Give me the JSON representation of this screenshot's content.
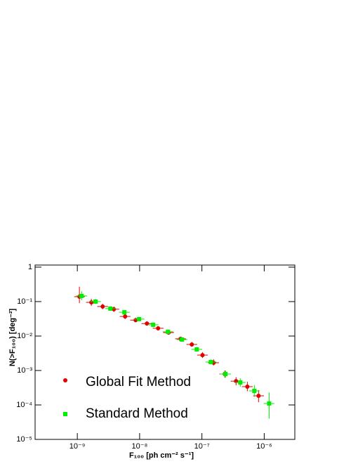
{
  "chart_data": {
    "type": "scatter",
    "x_label": "F₁₀₀ [ph cm⁻² s⁻¹]",
    "y_label": "N(>F₁₀₀) [deg⁻²]",
    "log_x": true,
    "log_y": true,
    "xlim": [
      2.1e-10,
      3.1e-06
    ],
    "ylim": [
      1e-05,
      1.15
    ],
    "xticks": [
      {
        "value": 1e-09,
        "label": "10⁻⁹"
      },
      {
        "value": 1e-08,
        "label": "10⁻⁸"
      },
      {
        "value": 1e-07,
        "label": "10⁻⁷"
      },
      {
        "value": 1e-06,
        "label": "10⁻⁶"
      }
    ],
    "yticks": [
      {
        "value": 1e-05,
        "label": "10⁻⁵"
      },
      {
        "value": 0.0001,
        "label": "10⁻⁴"
      },
      {
        "value": 0.001,
        "label": "10⁻³"
      },
      {
        "value": 0.01,
        "label": "10⁻²"
      },
      {
        "value": 0.1,
        "label": "10⁻¹"
      },
      1
    ],
    "legend": "lower left",
    "series": [
      {
        "name": "Global Fit Method",
        "color": "#e00000",
        "marker": "circle",
        "x": [
          1.08e-09,
          1.68e-09,
          2.55e-09,
          3.86e-09,
          5.85e-09,
          8.63e-09,
          1.31e-08,
          1.98e-08,
          2.92e-08,
          4.54e-08,
          6.88e-08,
          1.02e-07,
          1.54e-07,
          2.33e-07,
          3.53e-07,
          5.36e-07,
          8.11e-07
        ],
        "x_low": [
          8.9e-10,
          1.38e-09,
          2.09e-09,
          3.16e-09,
          4.8e-09,
          7.07e-09,
          1.07e-08,
          1.62e-08,
          2.39e-08,
          3.72e-08,
          5.64e-08,
          8.4e-08,
          1.26e-07,
          1.91e-07,
          2.89e-07,
          4.39e-07,
          6.65e-07
        ],
        "x_high": [
          1.32e-09,
          2.05e-09,
          3.11e-09,
          4.71e-09,
          7.14e-09,
          1.05e-08,
          1.6e-08,
          2.42e-08,
          3.56e-08,
          5.54e-08,
          8.39e-08,
          1.24e-07,
          1.88e-07,
          2.84e-07,
          4.31e-07,
          6.54e-07,
          9.89e-07
        ],
        "values": [
          0.139,
          0.095,
          0.072,
          0.06,
          0.037,
          0.029,
          0.023,
          0.0168,
          0.0126,
          0.0083,
          0.0057,
          0.0028,
          0.00168,
          0.00079,
          0.00049,
          0.00034,
          0.000184
        ],
        "y_low": [
          0.09,
          0.075,
          0.06,
          0.05,
          0.031,
          0.025,
          0.02,
          0.0145,
          0.011,
          0.0072,
          0.0049,
          0.0023,
          0.0014,
          0.00062,
          0.00037,
          0.00025,
          0.00012
        ],
        "y_high": [
          0.27,
          0.12,
          0.086,
          0.072,
          0.044,
          0.034,
          0.027,
          0.0195,
          0.0145,
          0.0096,
          0.0067,
          0.0034,
          0.0021,
          0.001,
          0.00064,
          0.00047,
          0.00027
        ]
      },
      {
        "name": "Standard Method",
        "color": "#00ee00",
        "marker": "square",
        "x": [
          1.17e-09,
          1.96e-09,
          3.39e-09,
          5.69e-09,
          9.8e-09,
          1.65e-08,
          2.85e-08,
          4.79e-08,
          8.26e-08,
          1.39e-07,
          2.39e-07,
          4.13e-07,
          6.94e-07,
          1.2e-06
        ],
        "x_low": [
          9.6e-10,
          1.61e-09,
          2.78e-09,
          4.66e-09,
          8.03e-09,
          1.35e-08,
          2.34e-08,
          3.93e-08,
          6.77e-08,
          1.14e-07,
          1.96e-07,
          3.39e-07,
          5.69e-07,
          9.8e-07
        ],
        "x_high": [
          1.43e-09,
          2.39e-09,
          4.14e-09,
          6.94e-09,
          1.2e-08,
          2.01e-08,
          3.48e-08,
          5.84e-08,
          1.01e-07,
          1.7e-07,
          2.92e-07,
          5.04e-07,
          8.47e-07,
          1.46e-06
        ],
        "values": [
          0.146,
          0.1,
          0.0625,
          0.049,
          0.031,
          0.0212,
          0.0133,
          0.0079,
          0.0041,
          0.00176,
          0.00079,
          0.00045,
          0.000256,
          0.00011
        ],
        "y_low": [
          0.11,
          0.085,
          0.054,
          0.042,
          0.027,
          0.018,
          0.0115,
          0.0068,
          0.0035,
          0.0015,
          0.00062,
          0.00034,
          0.00017,
          4e-05
        ],
        "y_high": [
          0.2,
          0.12,
          0.073,
          0.057,
          0.036,
          0.025,
          0.0155,
          0.0093,
          0.0048,
          0.0021,
          0.001,
          0.00059,
          0.00038,
          0.00023
        ]
      }
    ]
  }
}
